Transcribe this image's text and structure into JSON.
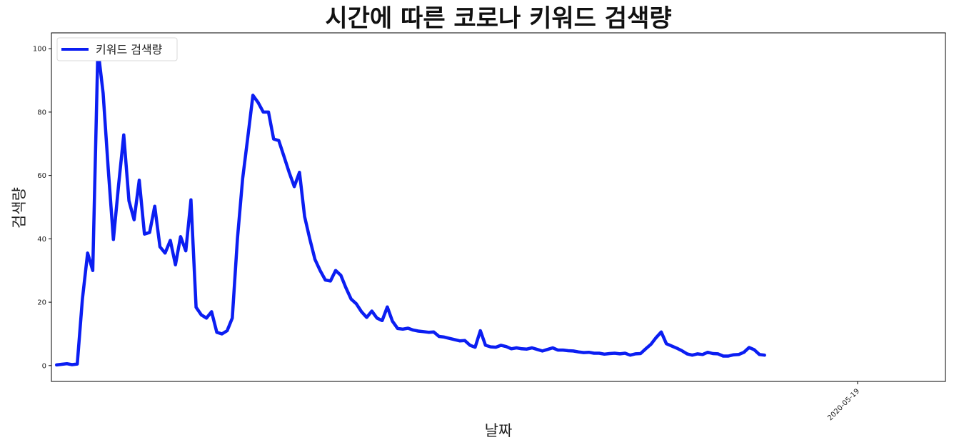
{
  "chart_data": {
    "type": "line",
    "title": "시간에 따른 코로나 키워드 검색량",
    "xlabel": "날짜",
    "ylabel": "검색량",
    "ylim": [
      -5,
      105
    ],
    "yticks": [
      0,
      20,
      40,
      60,
      80,
      100
    ],
    "xlim_index": [
      -1,
      172
    ],
    "xticks": [
      {
        "index": 155,
        "label": "2020-05-19"
      }
    ],
    "grid": false,
    "legend_position": "top-left",
    "series": [
      {
        "name": "키워드 검색량",
        "color": "#0b1ef2",
        "values": [
          0.2,
          0.4,
          0.6,
          0.3,
          0.5,
          21,
          35.5,
          30,
          100,
          86,
          62,
          39.8,
          57,
          72.8,
          52,
          46,
          58.5,
          41.5,
          42,
          50.3,
          37.5,
          35.5,
          39.5,
          31.8,
          40.7,
          36.2,
          52.3,
          18.4,
          16,
          15,
          17,
          10.5,
          10,
          11,
          15,
          40,
          59,
          72,
          85.3,
          83,
          80,
          80,
          71.5,
          71,
          66,
          61,
          56.5,
          61,
          47,
          40,
          33.5,
          30,
          27,
          26.7,
          30,
          28.5,
          24.5,
          21,
          19.5,
          17,
          15.2,
          17.2,
          15,
          14.2,
          18.5,
          14,
          11.7,
          11.5,
          11.8,
          11.2,
          10.9,
          10.7,
          10.5,
          10.6,
          9.2,
          9,
          8.6,
          8.2,
          7.8,
          7.9,
          6.4,
          5.8,
          11,
          6.4,
          5.9,
          5.8,
          6.4,
          6,
          5.3,
          5.6,
          5.3,
          5.2,
          5.6,
          5.1,
          4.6,
          5.1,
          5.6,
          4.9,
          4.9,
          4.7,
          4.6,
          4.3,
          4.1,
          4.2,
          3.9,
          3.9,
          3.6,
          3.8,
          3.9,
          3.7,
          3.9,
          3.3,
          3.7,
          3.8,
          5.3,
          6.7,
          8.8,
          10.6,
          6.9,
          6.2,
          5.5,
          4.7,
          3.7,
          3.3,
          3.7,
          3.5,
          4.2,
          3.8,
          3.7,
          3,
          3,
          3.4,
          3.5,
          4.2,
          5.7,
          5,
          3.5,
          3.3
        ]
      }
    ]
  }
}
